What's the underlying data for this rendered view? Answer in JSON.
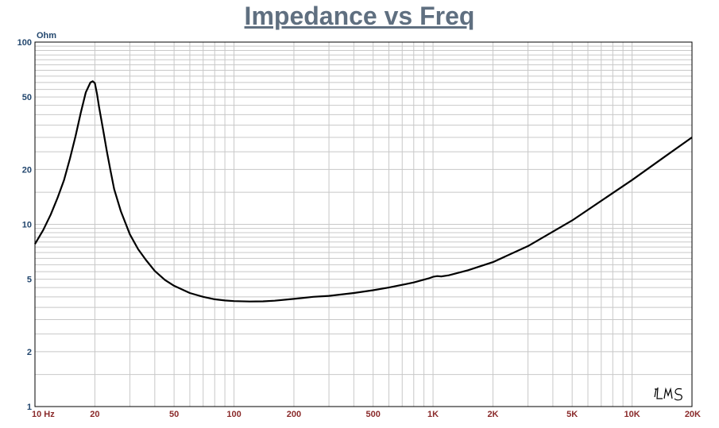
{
  "colors": {
    "title": "#5f6f80",
    "axis_labels": "#23476e",
    "freq_labels": "#8a2a2a",
    "grid": "#c8c8c8",
    "frame": "#000000",
    "curve": "#000000"
  },
  "chart_data": {
    "type": "line",
    "title": "Impedance vs Freq",
    "ylabel": "Ohm",
    "xscale": "log",
    "yscale": "log",
    "xlim": [
      10,
      20000
    ],
    "ylim": [
      1,
      100
    ],
    "grid": true,
    "watermark": "LMS",
    "yticks": [
      {
        "value": 100,
        "label": "100"
      },
      {
        "value": 50,
        "label": "50"
      },
      {
        "value": 20,
        "label": "20"
      },
      {
        "value": 10,
        "label": "10"
      },
      {
        "value": 5,
        "label": "5"
      },
      {
        "value": 2,
        "label": "2"
      },
      {
        "value": 1,
        "label": "1"
      }
    ],
    "xticks": [
      {
        "value": 10,
        "label": "10 Hz"
      },
      {
        "value": 20,
        "label": "20"
      },
      {
        "value": 50,
        "label": "50"
      },
      {
        "value": 100,
        "label": "100"
      },
      {
        "value": 200,
        "label": "200"
      },
      {
        "value": 500,
        "label": "500"
      },
      {
        "value": 1000,
        "label": "1K"
      },
      {
        "value": 2000,
        "label": "2K"
      },
      {
        "value": 5000,
        "label": "5K"
      },
      {
        "value": 10000,
        "label": "10K"
      },
      {
        "value": 20000,
        "label": "20K"
      }
    ],
    "series": [
      {
        "x": [
          10,
          11,
          12,
          13,
          14,
          15,
          16,
          17,
          18,
          19,
          19.5,
          20,
          20.5,
          21,
          22,
          23,
          24,
          25,
          27,
          30,
          33,
          36,
          40,
          45,
          50,
          60,
          70,
          80,
          90,
          100,
          120,
          140,
          160,
          200,
          250,
          300,
          400,
          500,
          600,
          800,
          950,
          1000,
          1050,
          1100,
          1200,
          1500,
          2000,
          3000,
          5000,
          10000,
          15000,
          20000
        ],
        "y": [
          7.8,
          9.3,
          11.3,
          14.0,
          17.5,
          23.0,
          30.5,
          41.0,
          53.0,
          60.0,
          61.0,
          59.5,
          52.0,
          44.0,
          33.0,
          25.0,
          19.5,
          15.6,
          11.8,
          8.8,
          7.3,
          6.4,
          5.55,
          4.95,
          4.6,
          4.2,
          4.0,
          3.88,
          3.82,
          3.79,
          3.77,
          3.78,
          3.81,
          3.9,
          4.0,
          4.05,
          4.2,
          4.35,
          4.5,
          4.8,
          5.05,
          5.15,
          5.2,
          5.18,
          5.25,
          5.6,
          6.2,
          7.6,
          10.5,
          17.5,
          24.0,
          30.0
        ]
      }
    ]
  }
}
